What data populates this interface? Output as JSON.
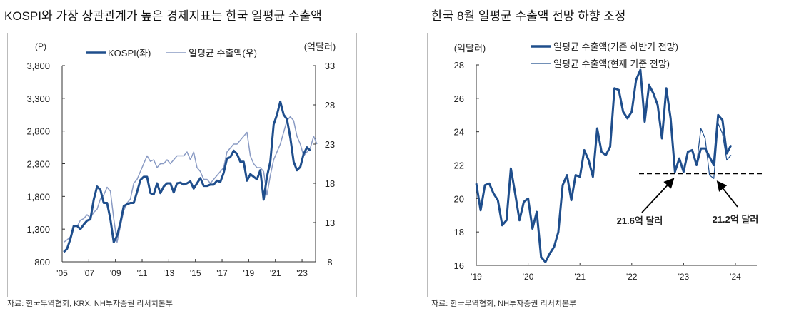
{
  "left": {
    "title": "KOSPI와 가장 상관관계가 높은 경제지표는 한국 일평균 수출액",
    "source": "자료: 한국무역협회, KRX, NH투자증권 리서치본부"
  },
  "right": {
    "title": "한국 8월 일평균 수출액 전망 하향 조정",
    "source": "자료: 한국무역협회, NH투자증권 리서치본부"
  },
  "chart_data": [
    {
      "type": "line",
      "left_unit": "(P)",
      "right_unit": "(억달러)",
      "ylim_left": [
        800,
        3800
      ],
      "yticks_left": [
        "800",
        "1,300",
        "1,800",
        "2,300",
        "2,800",
        "3,300",
        "3,800"
      ],
      "ylim_right": [
        8,
        33
      ],
      "yticks_right": [
        "8",
        "13",
        "18",
        "23",
        "28",
        "33"
      ],
      "xticks": [
        "'05",
        "'07",
        "'09",
        "'11",
        "'13",
        "'15",
        "'17",
        "'19",
        "'21",
        "'23"
      ],
      "legend": "top",
      "grid": false,
      "colors": {
        "kospi": "#1f4e8c",
        "export": "#8a9bc4"
      },
      "series": [
        {
          "name": "KOSPI(좌)",
          "axis": "left",
          "start": 2005,
          "freq": "quarterly",
          "values": [
            950,
            1000,
            1150,
            1350,
            1350,
            1300,
            1370,
            1430,
            1450,
            1750,
            1950,
            1900,
            1700,
            1700,
            1450,
            1100,
            1200,
            1400,
            1650,
            1680,
            1700,
            1700,
            1870,
            2050,
            2100,
            2100,
            1850,
            1830,
            2000,
            1850,
            1950,
            2000,
            2000,
            1860,
            2000,
            2010,
            1980,
            2000,
            2030,
            1920,
            2000,
            2080,
            1960,
            1960,
            1980,
            1980,
            2040,
            2020,
            2160,
            2380,
            2400,
            2500,
            2450,
            2330,
            2330,
            2040,
            2140,
            2100,
            2060,
            2200,
            1750,
            2100,
            2330,
            2900,
            3050,
            3250,
            3050,
            2980,
            2700,
            2330,
            2200,
            2250,
            2450,
            2550,
            2500
          ]
        },
        {
          "name": "일평균 수출액(우)",
          "axis": "right",
          "start": 2005,
          "freq": "quarterly",
          "values": [
            10.5,
            10.8,
            11.2,
            12.5,
            12.5,
            13.3,
            13.5,
            14.0,
            13.6,
            14.3,
            14.7,
            16.0,
            16.5,
            17.5,
            17.0,
            13.5,
            10.5,
            12.5,
            14.5,
            15.5,
            16.0,
            18.0,
            18.5,
            19.5,
            20.5,
            21.5,
            20.8,
            21.0,
            20.0,
            20.5,
            20.5,
            21.0,
            20.5,
            21.0,
            21.5,
            21.5,
            21.5,
            22.0,
            21.0,
            22.0,
            20.0,
            19.5,
            18.5,
            18.5,
            18.0,
            18.5,
            19.0,
            19.5,
            20.0,
            22.0,
            22.5,
            23.0,
            23.0,
            23.5,
            24.0,
            24.5,
            21.5,
            20.5,
            20.0,
            20.0,
            19.5,
            16.5,
            19.0,
            21.0,
            22.0,
            23.0,
            24.5,
            26.0,
            26.5,
            26.0,
            24.0,
            23.0,
            21.5,
            22.0,
            22.5,
            24.0,
            23.0
          ]
        }
      ]
    },
    {
      "type": "line",
      "unit": "(억달러)",
      "ylim": [
        16,
        28
      ],
      "yticks": [
        "16",
        "18",
        "20",
        "22",
        "24",
        "26",
        "28"
      ],
      "xticks": [
        "'19",
        "'20",
        "'21",
        "'22",
        "'23",
        "'24"
      ],
      "legend": "top",
      "grid": false,
      "colors": {
        "main": "#1f4e8c",
        "current": "#1f4e8c"
      },
      "series": [
        {
          "name": "일평균 수출액(기존 하반기 전망)",
          "start": "2019-01",
          "freq": "monthly",
          "values": [
            20.9,
            19.3,
            20.8,
            20.9,
            20.3,
            19.9,
            18.4,
            18.7,
            21.8,
            20.3,
            18.7,
            19.8,
            20.0,
            18.2,
            19.2,
            16.5,
            16.2,
            16.7,
            17.1,
            18.0,
            20.8,
            21.4,
            19.9,
            21.4,
            21.3,
            22.9,
            22.3,
            21.3,
            24.2,
            22.8,
            22.6,
            23.1,
            26.6,
            26.5,
            25.2,
            24.8,
            25.2,
            27.1,
            27.7,
            24.6,
            26.8,
            26.3,
            25.6,
            23.6,
            26.6,
            24.8,
            21.6,
            22.4,
            21.6,
            22.8,
            22.9,
            22.0,
            23.0,
            23.0,
            22.5,
            22.0,
            25.0,
            24.7,
            22.7,
            23.2
          ]
        },
        {
          "name": "일평균 수출액(현재 기준 전망)",
          "start": "2022-12",
          "freq": "monthly",
          "values": [
            22.0,
            24.2,
            23.6,
            21.4,
            21.2,
            24.5,
            23.9,
            22.3,
            22.6
          ],
          "offset": 51
        }
      ],
      "reference_line": 21.5,
      "annotations": [
        "21.6억 달러",
        "21.2억 달러"
      ]
    }
  ]
}
